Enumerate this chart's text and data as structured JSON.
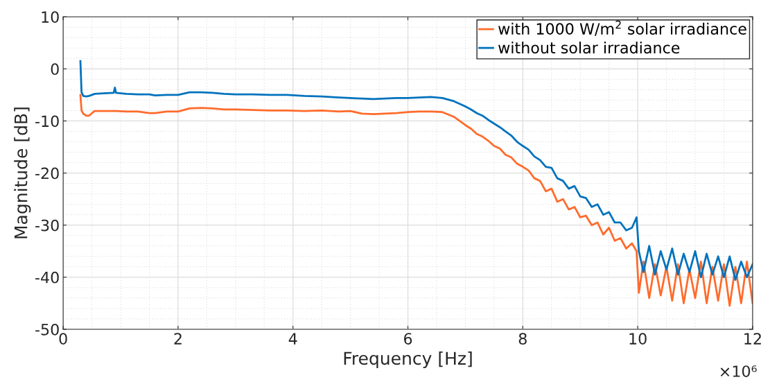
{
  "chart_data": {
    "type": "line",
    "xlabel": "Frequency [Hz]",
    "ylabel": "Magnitude [dB]",
    "x": [
      0.3,
      0.32,
      0.35,
      0.4,
      0.45,
      0.5,
      0.55,
      0.7,
      0.88,
      0.9,
      0.92,
      1.1,
      1.3,
      1.5,
      1.6,
      1.8,
      2.0,
      2.2,
      2.4,
      2.6,
      2.8,
      3.0,
      3.3,
      3.6,
      3.9,
      4.2,
      4.5,
      4.8,
      5.0,
      5.2,
      5.4,
      5.6,
      5.8,
      6.0,
      6.2,
      6.4,
      6.6,
      6.8,
      7.0,
      7.1,
      7.2,
      7.3,
      7.4,
      7.5,
      7.6,
      7.7,
      7.8,
      7.9,
      8.0,
      8.1,
      8.2,
      8.3,
      8.4,
      8.5,
      8.6,
      8.7,
      8.8,
      8.9,
      9.0,
      9.1,
      9.2,
      9.3,
      9.4,
      9.5,
      9.6,
      9.7,
      9.8,
      9.9,
      9.98,
      10.02,
      10.1,
      10.2,
      10.3,
      10.4,
      10.5,
      10.6,
      10.7,
      10.8,
      10.9,
      11.0,
      11.1,
      11.2,
      11.3,
      11.4,
      11.5,
      11.6,
      11.7,
      11.8,
      11.9,
      12.0
    ],
    "series": [
      {
        "name": "with 1000 W/m$^{2}$ solar irradiance",
        "color": "#ff6b2b",
        "values": [
          -5,
          -8,
          -8.6,
          -9,
          -9,
          -8.5,
          -8.1,
          -8.1,
          -8.1,
          -8.1,
          -8.1,
          -8.2,
          -8.2,
          -8.5,
          -8.5,
          -8.2,
          -8.2,
          -7.6,
          -7.5,
          -7.6,
          -7.8,
          -7.8,
          -7.9,
          -8.0,
          -8.0,
          -8.1,
          -8.0,
          -8.2,
          -8.1,
          -8.6,
          -8.7,
          -8.6,
          -8.5,
          -8.3,
          -8.2,
          -8.2,
          -8.3,
          -9.2,
          -10.8,
          -11.5,
          -12.5,
          -13,
          -13.8,
          -14.8,
          -15.3,
          -16.5,
          -17,
          -18.2,
          -18.8,
          -19.5,
          -21,
          -21.5,
          -23.5,
          -23,
          -25.5,
          -25,
          -27,
          -26.5,
          -28.5,
          -28.2,
          -30,
          -29.5,
          -31.8,
          -30.5,
          -33,
          -32.5,
          -34.5,
          -33.5,
          -35,
          -43,
          -37,
          -44,
          -37.5,
          -43.5,
          -38,
          -44.5,
          -37.5,
          -45,
          -38.5,
          -44,
          -37,
          -45,
          -38,
          -44.5,
          -37.5,
          -45.5,
          -38,
          -45,
          -37,
          -45
        ]
      },
      {
        "name": "without solar irradiance",
        "color": "#0072bd",
        "values": [
          1.5,
          -4.5,
          -5.2,
          -5.3,
          -5.2,
          -5.0,
          -4.8,
          -4.7,
          -4.6,
          -3.6,
          -4.6,
          -4.8,
          -4.9,
          -4.9,
          -5.1,
          -5.0,
          -5.0,
          -4.5,
          -4.5,
          -4.6,
          -4.8,
          -4.9,
          -4.9,
          -5.0,
          -5.0,
          -5.2,
          -5.3,
          -5.5,
          -5.6,
          -5.7,
          -5.8,
          -5.7,
          -5.6,
          -5.6,
          -5.5,
          -5.4,
          -5.6,
          -6.2,
          -7.2,
          -7.8,
          -8.5,
          -9,
          -9.8,
          -10.5,
          -11.2,
          -12,
          -12.8,
          -14,
          -14.8,
          -15.5,
          -16.8,
          -17.5,
          -18.8,
          -19,
          -21,
          -21.5,
          -23,
          -22.5,
          -24.5,
          -24.8,
          -26.5,
          -26,
          -28,
          -27.5,
          -29.5,
          -29.5,
          -31,
          -30.5,
          -28.5,
          -35,
          -39,
          -34,
          -39.5,
          -35,
          -38.5,
          -34.5,
          -39.5,
          -35.5,
          -39,
          -35,
          -40,
          -35.5,
          -39.5,
          -36,
          -40,
          -36,
          -40.5,
          -37,
          -40,
          -37.5
        ]
      }
    ],
    "xlim": [
      0,
      12
    ],
    "xticks": [
      0,
      2,
      4,
      6,
      8,
      10,
      12
    ],
    "ylim": [
      -50,
      10
    ],
    "yticks": [
      -50,
      -40,
      -30,
      -20,
      -10,
      0,
      10
    ],
    "annotations": [
      "×10⁶"
    ],
    "grid": true,
    "legend": "top right",
    "line_style": "solid",
    "marker": "none"
  }
}
